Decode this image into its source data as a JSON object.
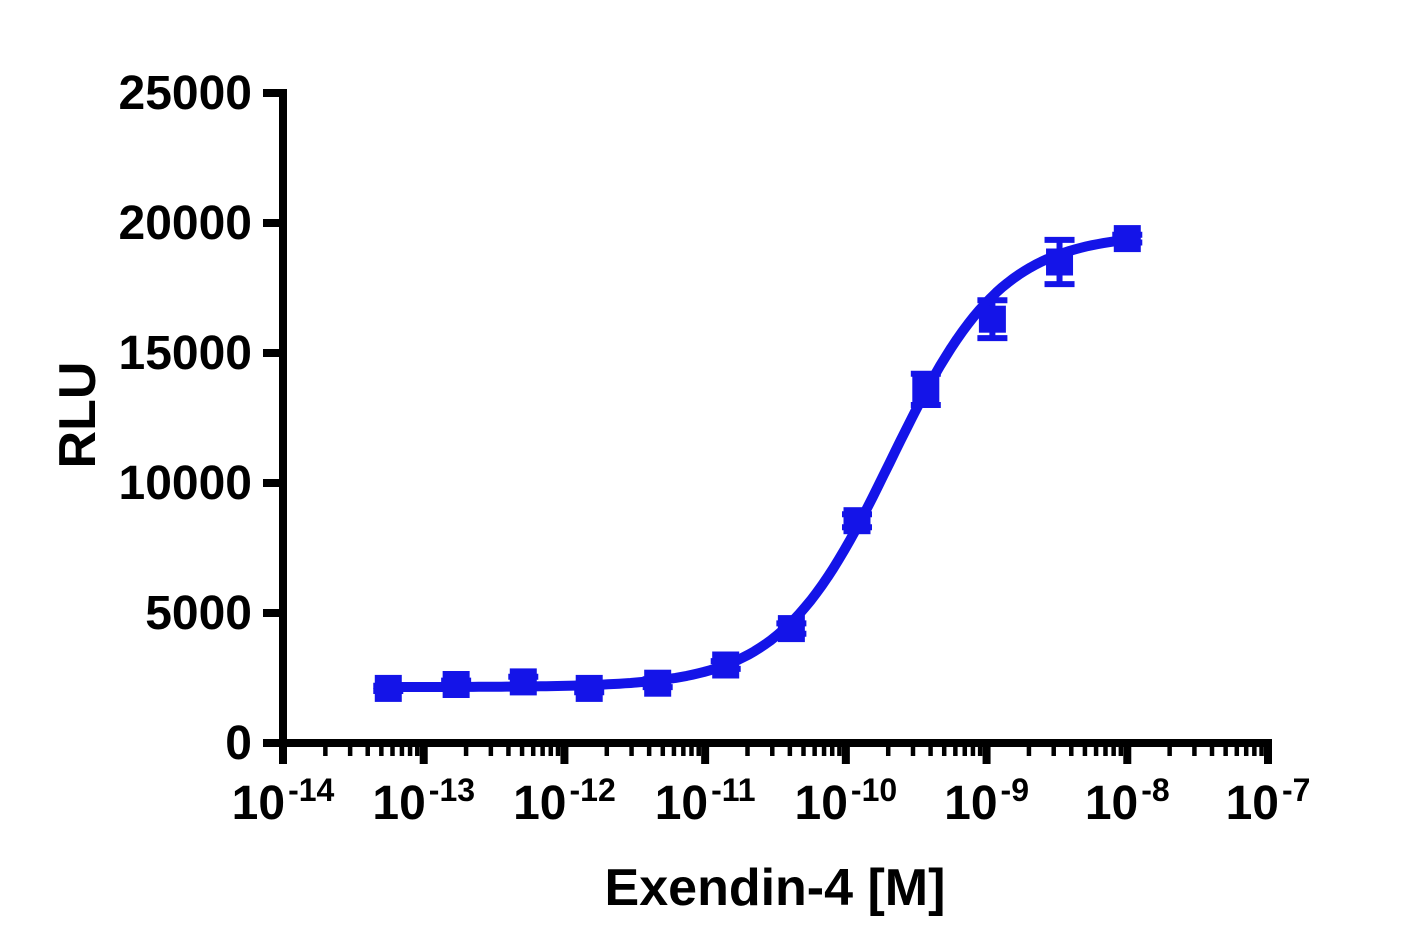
{
  "chart_data": {
    "type": "scatter",
    "title": "",
    "xlabel": "Exendin-4 [M]",
    "ylabel": "RLU",
    "x_scale": "log10",
    "grid": false,
    "legend": "none",
    "x_axis": {
      "min_exp": -14,
      "max_exp": -7,
      "tick_base": "10",
      "tick_exponents": [
        -14,
        -13,
        -12,
        -11,
        -10,
        -9,
        -8,
        -7
      ],
      "minor_tick_multiples": [
        2,
        3,
        4,
        5,
        6,
        7,
        8,
        9
      ]
    },
    "y_axis": {
      "min": 0,
      "max": 25000,
      "ticks": [
        0,
        5000,
        10000,
        15000,
        20000,
        25000
      ]
    },
    "series": [
      {
        "name": "Exendin-4",
        "color": "#1414E8",
        "marker": "square",
        "x_molar": [
          5.6e-14,
          1.7e-13,
          5.1e-13,
          1.5e-12,
          4.6e-12,
          1.4e-11,
          4.1e-11,
          1.2e-10,
          3.7e-10,
          1.1e-09,
          3.3e-09,
          1e-08
        ],
        "y_rlu": [
          2100,
          2250,
          2350,
          2100,
          2300,
          3000,
          4400,
          8550,
          13600,
          16300,
          18500,
          19400
        ],
        "y_err": [
          100,
          150,
          200,
          150,
          150,
          150,
          200,
          250,
          600,
          730,
          850,
          150
        ],
        "fit_curve": {
          "model": "four_parameter_logistic",
          "bottom": 2150,
          "top": 19600,
          "logEC50": -9.68,
          "hill": 1.1,
          "x_start_log": -13.25,
          "x_end_log": -8.0
        }
      }
    ]
  }
}
